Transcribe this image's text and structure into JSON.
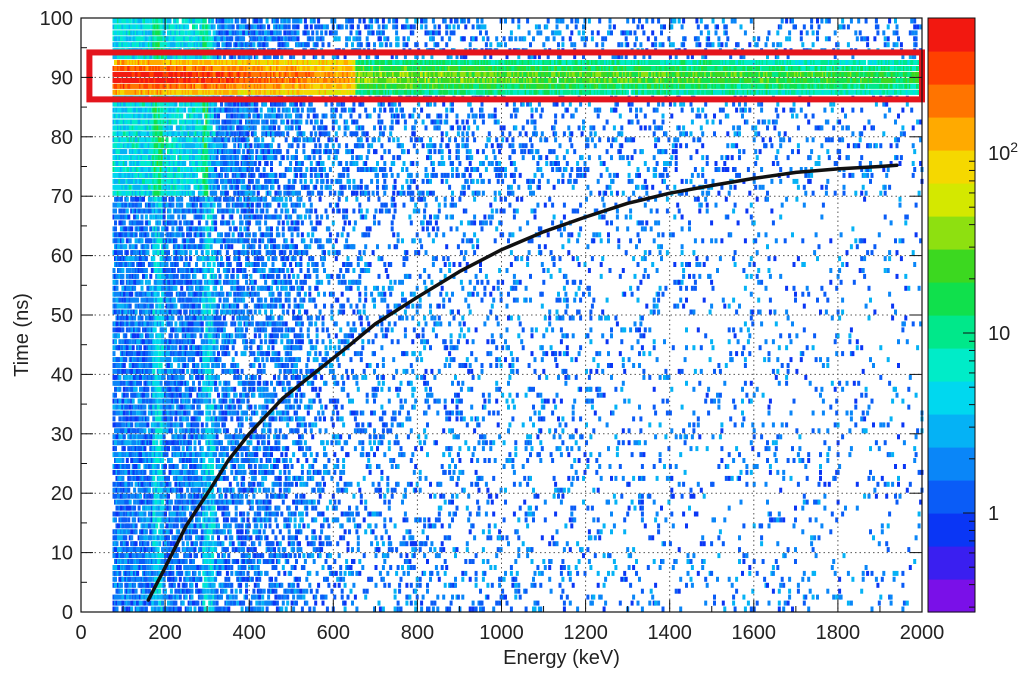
{
  "chart_data": {
    "type": "heatmap",
    "title": "",
    "xlabel": "Energy (keV)",
    "ylabel": "Time (ns)",
    "xlim": [
      0,
      2000
    ],
    "ylim": [
      0,
      100
    ],
    "xticks": [
      0,
      200,
      400,
      600,
      800,
      1000,
      1200,
      1400,
      1600,
      1800,
      2000
    ],
    "yticks": [
      0,
      10,
      20,
      30,
      40,
      50,
      60,
      70,
      80,
      90,
      100
    ],
    "x_tick_labels": [
      "0",
      "200",
      "400",
      "600",
      "800",
      "1000",
      "1200",
      "1400",
      "1600",
      "1800",
      "2000"
    ],
    "y_tick_labels": [
      "0",
      "10",
      "20",
      "30",
      "40",
      "50",
      "60",
      "70",
      "80",
      "90",
      "100"
    ],
    "grid": true,
    "colorbar": {
      "scale": "log",
      "labels": [
        {
          "value": 1,
          "text": "1"
        },
        {
          "value": 10,
          "text": "10"
        },
        {
          "value": 100,
          "text": "10",
          "sup": "2"
        }
      ],
      "colors": [
        "#7a10e8",
        "#3a1ff0",
        "#0a36f5",
        "#0a5cf7",
        "#0a86f8",
        "#05b2f5",
        "#00d8ef",
        "#00ecc8",
        "#00e88a",
        "#10e04c",
        "#3cd820",
        "#8ee010",
        "#d4e800",
        "#f5d800",
        "#ffaa00",
        "#ff7400",
        "#ff4000",
        "#f21810"
      ]
    },
    "curve": {
      "color": "#111111",
      "points": [
        [
          160,
          2
        ],
        [
          200,
          7.5
        ],
        [
          250,
          14.5
        ],
        [
          310,
          21
        ],
        [
          350,
          25.5
        ],
        [
          400,
          30
        ],
        [
          480,
          36
        ],
        [
          560,
          40.5
        ],
        [
          640,
          45
        ],
        [
          700,
          48.5
        ],
        [
          800,
          53
        ],
        [
          900,
          57.3
        ],
        [
          1000,
          61
        ],
        [
          1100,
          64
        ],
        [
          1200,
          66.5
        ],
        [
          1300,
          68.8
        ],
        [
          1400,
          70.5
        ],
        [
          1500,
          71.8
        ],
        [
          1600,
          73
        ],
        [
          1700,
          74
        ],
        [
          1800,
          74.6
        ],
        [
          1900,
          75
        ],
        [
          1940,
          75.2
        ]
      ]
    },
    "highlight_box": {
      "color": "#e4151d",
      "x_range": [
        20,
        2000
      ],
      "y_range": [
        86.3,
        94.2
      ]
    },
    "density_features": {
      "x_start": 75,
      "prompt_band": {
        "y_center": 90,
        "y_halfwidth": 3.5,
        "hot_x_range": [
          75,
          650
        ]
      },
      "low_energy_cluster": {
        "x_range": [
          75,
          800
        ],
        "y_range": [
          0,
          100
        ]
      },
      "streaks_x": [
        180,
        300
      ]
    }
  }
}
